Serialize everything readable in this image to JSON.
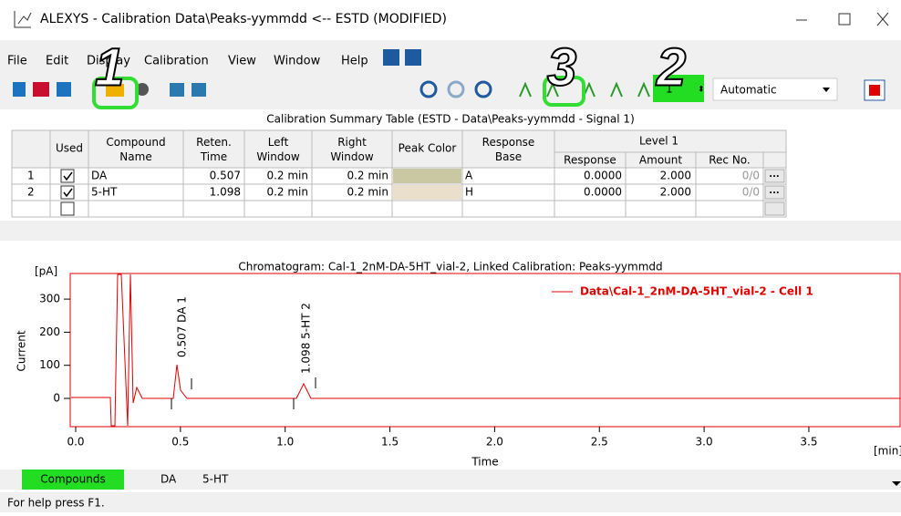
{
  "window": {
    "title": "ALEXYS - Calibration Data\\Peaks-yymmdd <-- ESTD (MODIFIED)"
  },
  "menu": [
    "File",
    "Edit",
    "Display",
    "Calibration",
    "View",
    "Window",
    "Help"
  ],
  "toolbar": {
    "level_value": "1",
    "mode": "Automatic"
  },
  "annotations": [
    "1",
    "2",
    "3"
  ],
  "table": {
    "title": "Calibration Summary Table (ESTD - Data\\Peaks-yymmdd - Signal 1)",
    "headers": [
      "Used",
      "Compound Name",
      "Reten. Time",
      "Left Window",
      "Right Window",
      "Peak Color",
      "Response Base",
      "Level 1"
    ],
    "subheaders": [
      "Response",
      "Amount",
      "Rec No."
    ],
    "rows": [
      {
        "num": "1",
        "used": true,
        "name": "DA",
        "time": "0.507",
        "left": "0.2 min",
        "right": "0.2 min",
        "color": "#c9c8a2",
        "base": "A",
        "response": "0.0000",
        "amount": "2.000",
        "rec": "0/0",
        "button": "..."
      },
      {
        "num": "2",
        "used": true,
        "name": "5-HT",
        "time": "1.098",
        "left": "0.2 min",
        "right": "0.2 min",
        "color": "#eadfcb",
        "base": "H",
        "response": "0.0000",
        "amount": "2.000",
        "rec": "0/0",
        "button": "..."
      }
    ]
  },
  "chromatogram": {
    "title": "Chromatogram: Cal-1_2nM-DA-5HT_vial-2, Linked Calibration: Peaks-yymmdd",
    "y_unit": "[pA]",
    "y_label": "Current",
    "x_label": "Time",
    "x_unit": "[min]",
    "yticks": [
      "0",
      "100",
      "200",
      "300"
    ],
    "xticks": [
      "0.0",
      "0.5",
      "1.0",
      "1.5",
      "2.0",
      "2.5",
      "3.0",
      "3.5"
    ],
    "legend": "Data\\Cal-1_2nM-DA-5HT_vial-2 - Cell 1",
    "peaks": [
      "0.507 DA   1",
      "1.098 5-HT   2"
    ]
  },
  "tabs": [
    "Compounds",
    "DA",
    "5-HT"
  ],
  "status": "For help press F1."
}
